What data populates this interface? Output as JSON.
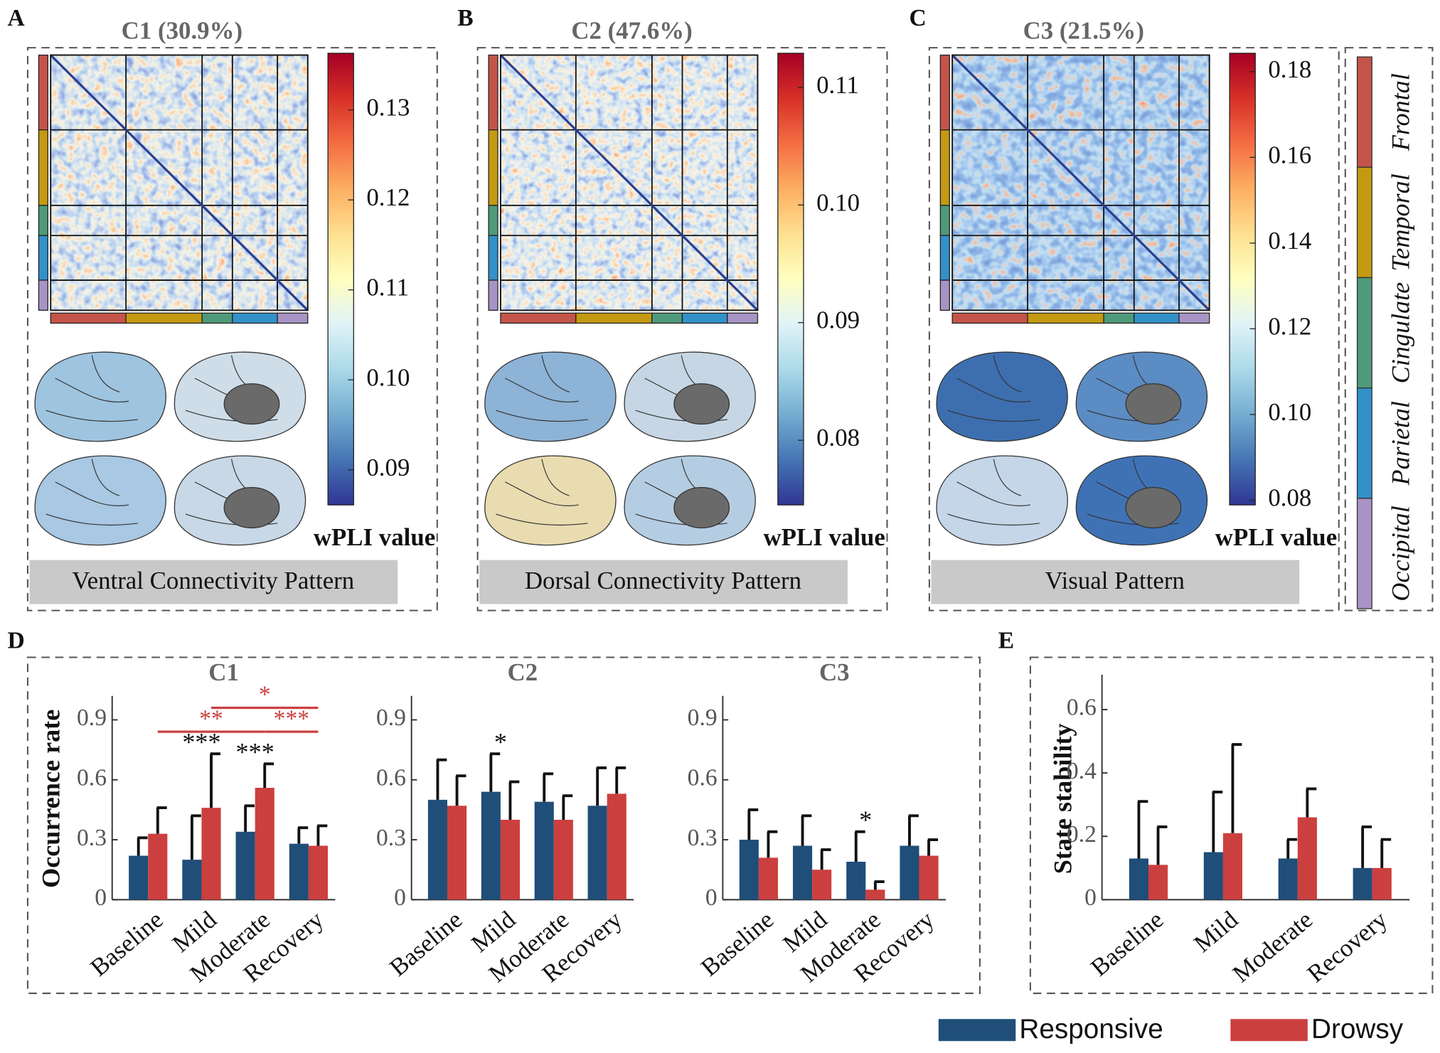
{
  "regions": {
    "names": [
      "Frontal",
      "Temporal",
      "Cingulate",
      "Parietal",
      "Occipital"
    ],
    "colors": [
      "#c4544a",
      "#c49a12",
      "#4f9a7a",
      "#3391c9",
      "#a894c4"
    ]
  },
  "chart_data": [
    {
      "type": "heatmap",
      "panel": "A",
      "title": "C1 (30.9%)",
      "caption": "Ventral Connectivity Pattern",
      "colorbar": {
        "label": "wPLI value",
        "lim": [
          0.0861,
          0.1363
        ],
        "ticks": [
          0.09,
          {
            "value": 0.1,
            "label": "0.10"
          },
          0.11,
          0.12,
          0.13
        ]
      }
    },
    {
      "type": "heatmap",
      "panel": "B",
      "title": "C2 (47.6%)",
      "caption": "Dorsal Connectivity Pattern",
      "colorbar": {
        "label": "wPLI value",
        "lim": [
          0.0745,
          0.1129
        ],
        "ticks": [
          0.08,
          0.09,
          {
            "value": 0.1,
            "label": "0.10"
          },
          0.11
        ]
      }
    },
    {
      "type": "heatmap",
      "panel": "C",
      "title": "C3 (21.5%)",
      "caption": "Visual Pattern",
      "colorbar": {
        "label": "wPLI value",
        "lim": [
          0.0789,
          0.1843
        ],
        "ticks": [
          0.08,
          {
            "value": 0.1,
            "label": "0.10"
          },
          0.12,
          0.14,
          0.16,
          0.18
        ]
      }
    },
    {
      "type": "bar",
      "panel": "D",
      "title": "C1",
      "ylabel": "Occurrence rate",
      "categories": [
        "Baseline",
        "Mild",
        "Moderate",
        "Recovery"
      ],
      "ylim": [
        0,
        1.02
      ],
      "yticks": [
        0,
        0.3,
        0.6,
        0.9
      ],
      "series": [
        {
          "name": "Responsive",
          "color": "#1f4e79",
          "values": [
            0.22,
            0.2,
            0.34,
            0.28
          ],
          "errors": [
            0.09,
            0.22,
            0.13,
            0.08
          ]
        },
        {
          "name": "Drowsy",
          "color": "#cc3f3f",
          "values": [
            0.33,
            0.46,
            0.56,
            0.27
          ],
          "errors": [
            0.13,
            0.27,
            0.12,
            0.1
          ]
        }
      ],
      "annotations": [
        {
          "category": 1,
          "label": "***"
        },
        {
          "category": 2,
          "label": "***"
        }
      ],
      "comparison_color": "#cc3f3f",
      "comparisons": [
        {
          "from": 0,
          "to": 2,
          "label": "**"
        },
        {
          "from": 2,
          "to": 3,
          "label": "***"
        },
        {
          "from": 1,
          "to": 3,
          "label": "*"
        }
      ]
    },
    {
      "type": "bar",
      "title": "C2",
      "categories": [
        "Baseline",
        "Mild",
        "Moderate",
        "Recovery"
      ],
      "ylim": [
        0,
        1.02
      ],
      "yticks": [
        0,
        0.3,
        0.6,
        0.9
      ],
      "series": [
        {
          "name": "Responsive",
          "color": "#1f4e79",
          "values": [
            0.5,
            0.54,
            0.49,
            0.47
          ],
          "errors": [
            0.2,
            0.19,
            0.14,
            0.19
          ]
        },
        {
          "name": "Drowsy",
          "color": "#cc3f3f",
          "values": [
            0.47,
            0.4,
            0.4,
            0.53
          ],
          "errors": [
            0.15,
            0.19,
            0.12,
            0.13
          ]
        }
      ],
      "annotations": [
        {
          "category": 1,
          "label": "*"
        }
      ]
    },
    {
      "type": "bar",
      "title": "C3",
      "categories": [
        "Baseline",
        "Mild",
        "Moderate",
        "Recovery"
      ],
      "ylim": [
        0,
        1.02
      ],
      "yticks": [
        0,
        0.3,
        0.6,
        0.9
      ],
      "series": [
        {
          "name": "Responsive",
          "color": "#1f4e79",
          "values": [
            0.3,
            0.27,
            0.19,
            0.27
          ],
          "errors": [
            0.15,
            0.15,
            0.15,
            0.15
          ]
        },
        {
          "name": "Drowsy",
          "color": "#cc3f3f",
          "values": [
            0.21,
            0.15,
            0.05,
            0.22
          ],
          "errors": [
            0.13,
            0.1,
            0.04,
            0.08
          ]
        }
      ],
      "annotations": [
        {
          "category": 2,
          "label": "*"
        }
      ]
    },
    {
      "type": "bar",
      "panel": "E",
      "ylabel": "State stability",
      "categories": [
        "Baseline",
        "Mild",
        "Moderate",
        "Recovery"
      ],
      "ylim": [
        0,
        0.71
      ],
      "yticks": [
        0,
        0.2,
        0.4,
        0.6
      ],
      "series": [
        {
          "name": "Responsive",
          "color": "#1f4e79",
          "values": [
            0.13,
            0.15,
            0.13,
            0.1
          ],
          "errors": [
            0.18,
            0.19,
            0.06,
            0.13
          ]
        },
        {
          "name": "Drowsy",
          "color": "#cc3f3f",
          "values": [
            0.11,
            0.21,
            0.26,
            0.1
          ],
          "errors": [
            0.12,
            0.28,
            0.09,
            0.09
          ]
        }
      ]
    }
  ]
}
